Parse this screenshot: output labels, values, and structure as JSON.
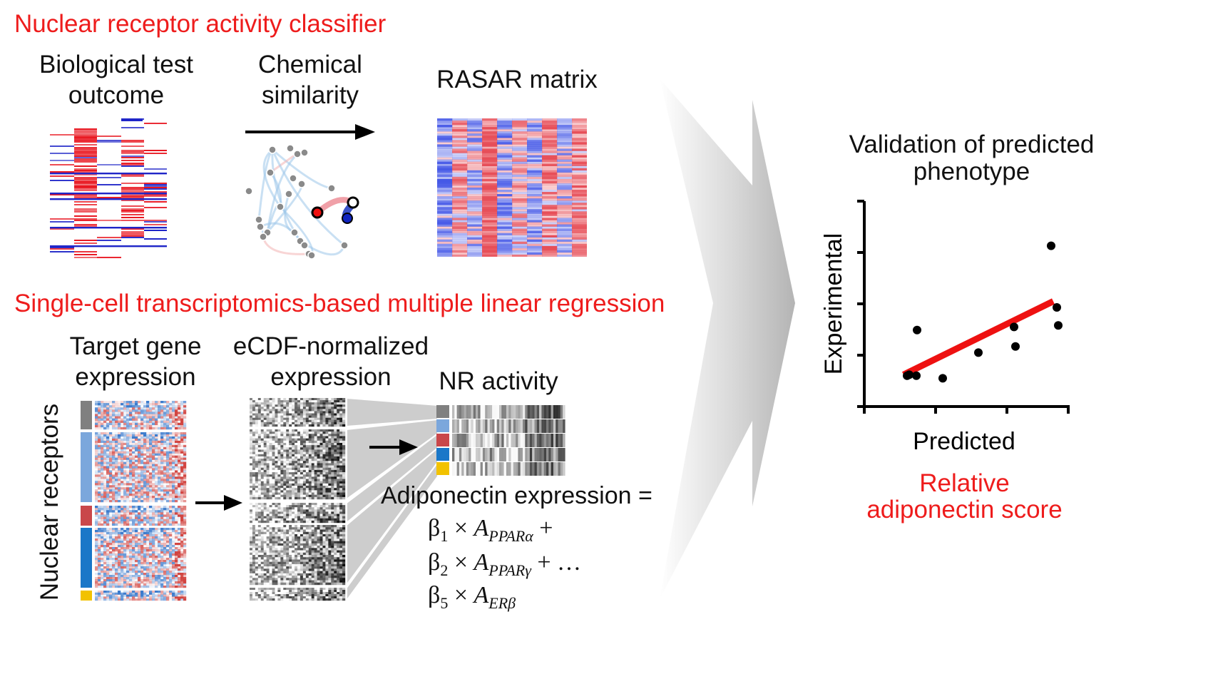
{
  "sections": {
    "top_title": "Nuclear receptor activity classifier",
    "bottom_title": "Single-cell transcriptomics-based multiple linear regression"
  },
  "top": {
    "bio_label": [
      "Biological test",
      "outcome"
    ],
    "chem_label": [
      "Chemical",
      "similarity"
    ],
    "rasar_label": "RASAR matrix"
  },
  "bottom": {
    "target_label": [
      "Target gene",
      "expression"
    ],
    "ecdf_label": [
      "eCDF-normalized",
      "expression"
    ],
    "nr_label": "NR activity",
    "y_label": "Nuclear receptors",
    "equation": {
      "lhs": "Adiponectin expression =",
      "line1": {
        "beta": "β",
        "sub": "1",
        "times": "×",
        "A": "A",
        "Asub": "PPARα",
        "tail": "+"
      },
      "line2": {
        "beta": "β",
        "sub": "2",
        "times": "×",
        "A": "A",
        "Asub": "PPARγ",
        "tail": "+ …"
      },
      "line3": {
        "beta": "β",
        "sub": "5",
        "times": "×",
        "A": "A",
        "Asub": "ERβ",
        "tail": ""
      }
    }
  },
  "validation": {
    "title": [
      "Validation of predicted",
      "phenotype"
    ],
    "xlabel": "Predicted",
    "ylabel": "Experimental",
    "note": [
      "Relative",
      "adiponectin score"
    ]
  },
  "colors": {
    "accent_red": "#ee1c1c",
    "heat_red": "#e8141e",
    "heat_blue": "#1f25c8",
    "group_gray": "#808080",
    "group_lightblue": "#7ba7dc",
    "group_red": "#c9474a",
    "group_blue": "#1a77c8",
    "group_yellow": "#f2c200"
  },
  "chart_data": {
    "type": "scatter",
    "xlabel": "Predicted",
    "ylabel": "Experimental",
    "points": [
      {
        "x": 0.6,
        "y": 0.6
      },
      {
        "x": 0.63,
        "y": 0.62
      },
      {
        "x": 0.73,
        "y": 0.6
      },
      {
        "x": 0.74,
        "y": 1.49
      },
      {
        "x": 1.1,
        "y": 0.55
      },
      {
        "x": 1.6,
        "y": 1.05
      },
      {
        "x": 2.1,
        "y": 1.55
      },
      {
        "x": 2.12,
        "y": 1.17
      },
      {
        "x": 2.62,
        "y": 3.13
      },
      {
        "x": 2.7,
        "y": 1.93
      },
      {
        "x": 2.72,
        "y": 1.58
      }
    ],
    "fit": {
      "x": [
        0.55,
        2.65
      ],
      "y": [
        0.62,
        2.05
      ]
    },
    "xlim": [
      0,
      3
    ],
    "ylim": [
      0,
      4
    ],
    "xticks": [
      0,
      1,
      2,
      3
    ],
    "yticks": [
      0,
      1,
      2,
      3,
      4
    ],
    "grid": false
  }
}
